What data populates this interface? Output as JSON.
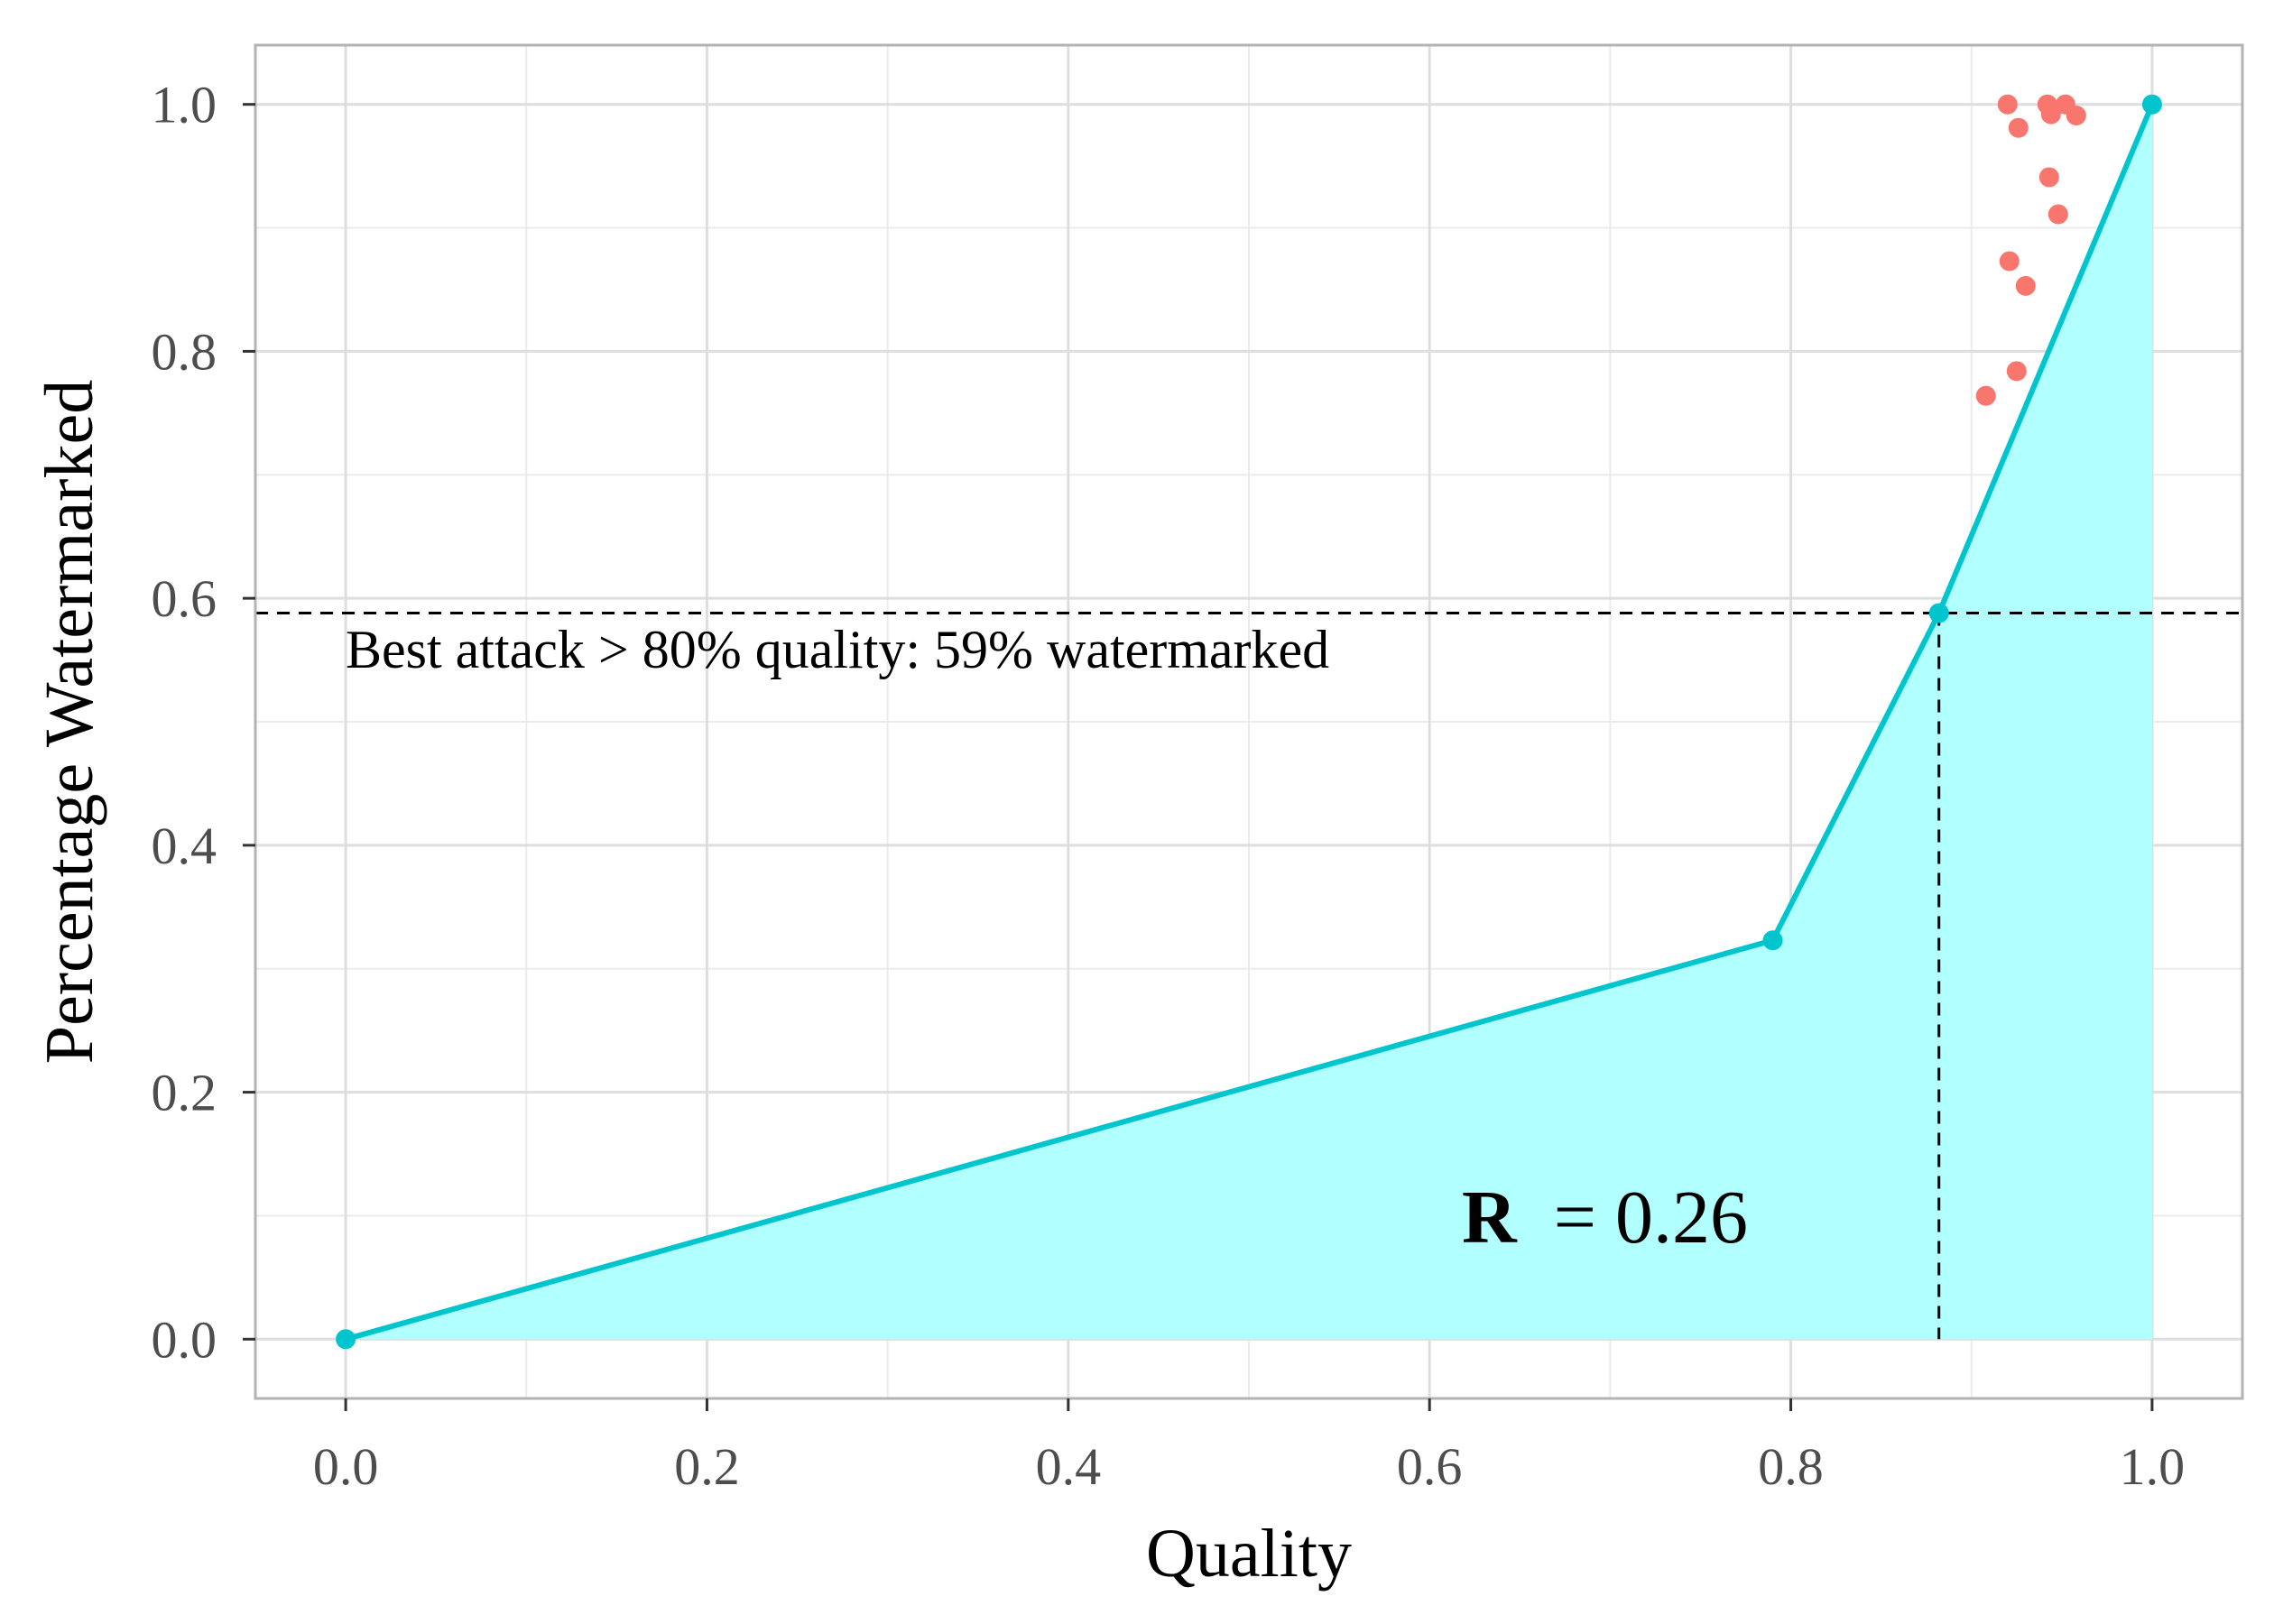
{
  "chart_data": {
    "type": "line",
    "xlabel": "Quality",
    "ylabel": "Percentage Watermarked",
    "xlim": [
      -0.05,
      1.05
    ],
    "ylim": [
      -0.048,
      1.048
    ],
    "x_ticks": [
      0.0,
      0.2,
      0.4,
      0.6,
      0.8,
      1.0
    ],
    "x_tick_labels": [
      "0.0",
      "0.2",
      "0.4",
      "0.6",
      "0.8",
      "1.0"
    ],
    "y_ticks": [
      0.0,
      0.2,
      0.4,
      0.6,
      0.8,
      1.0
    ],
    "y_tick_labels": [
      "0.0",
      "0.2",
      "0.4",
      "0.6",
      "0.8",
      "1.0"
    ],
    "grid": true,
    "legend": "none",
    "series": [
      {
        "kind": "frontier-line-area",
        "color": "#00C5CD",
        "fill_color": "#B2FFFF",
        "points": [
          {
            "x": 0.0,
            "y": 0.0
          },
          {
            "x": 0.79,
            "y": 0.323
          },
          {
            "x": 0.882,
            "y": 0.588
          },
          {
            "x": 1.0,
            "y": 1.0
          }
        ]
      },
      {
        "kind": "scatter",
        "color": "#F8766D",
        "points": [
          {
            "x": 0.92,
            "y": 1.0
          },
          {
            "x": 0.942,
            "y": 1.0
          },
          {
            "x": 0.952,
            "y": 1.0
          },
          {
            "x": 0.944,
            "y": 0.992
          },
          {
            "x": 0.958,
            "y": 0.991
          },
          {
            "x": 0.926,
            "y": 0.981
          },
          {
            "x": 0.943,
            "y": 0.941
          },
          {
            "x": 0.948,
            "y": 0.911
          },
          {
            "x": 0.921,
            "y": 0.873
          },
          {
            "x": 0.93,
            "y": 0.853
          },
          {
            "x": 0.925,
            "y": 0.784
          },
          {
            "x": 0.908,
            "y": 0.764
          }
        ]
      }
    ],
    "reference_lines": {
      "horizontal_y": 0.588,
      "vertical_x": 0.882,
      "style": "dashed",
      "color": "#000000"
    },
    "annotations": {
      "best_attack": "Best attack > 80% quality: 59% watermarked",
      "r_label": "R",
      "r_value": "= 0.26"
    }
  }
}
